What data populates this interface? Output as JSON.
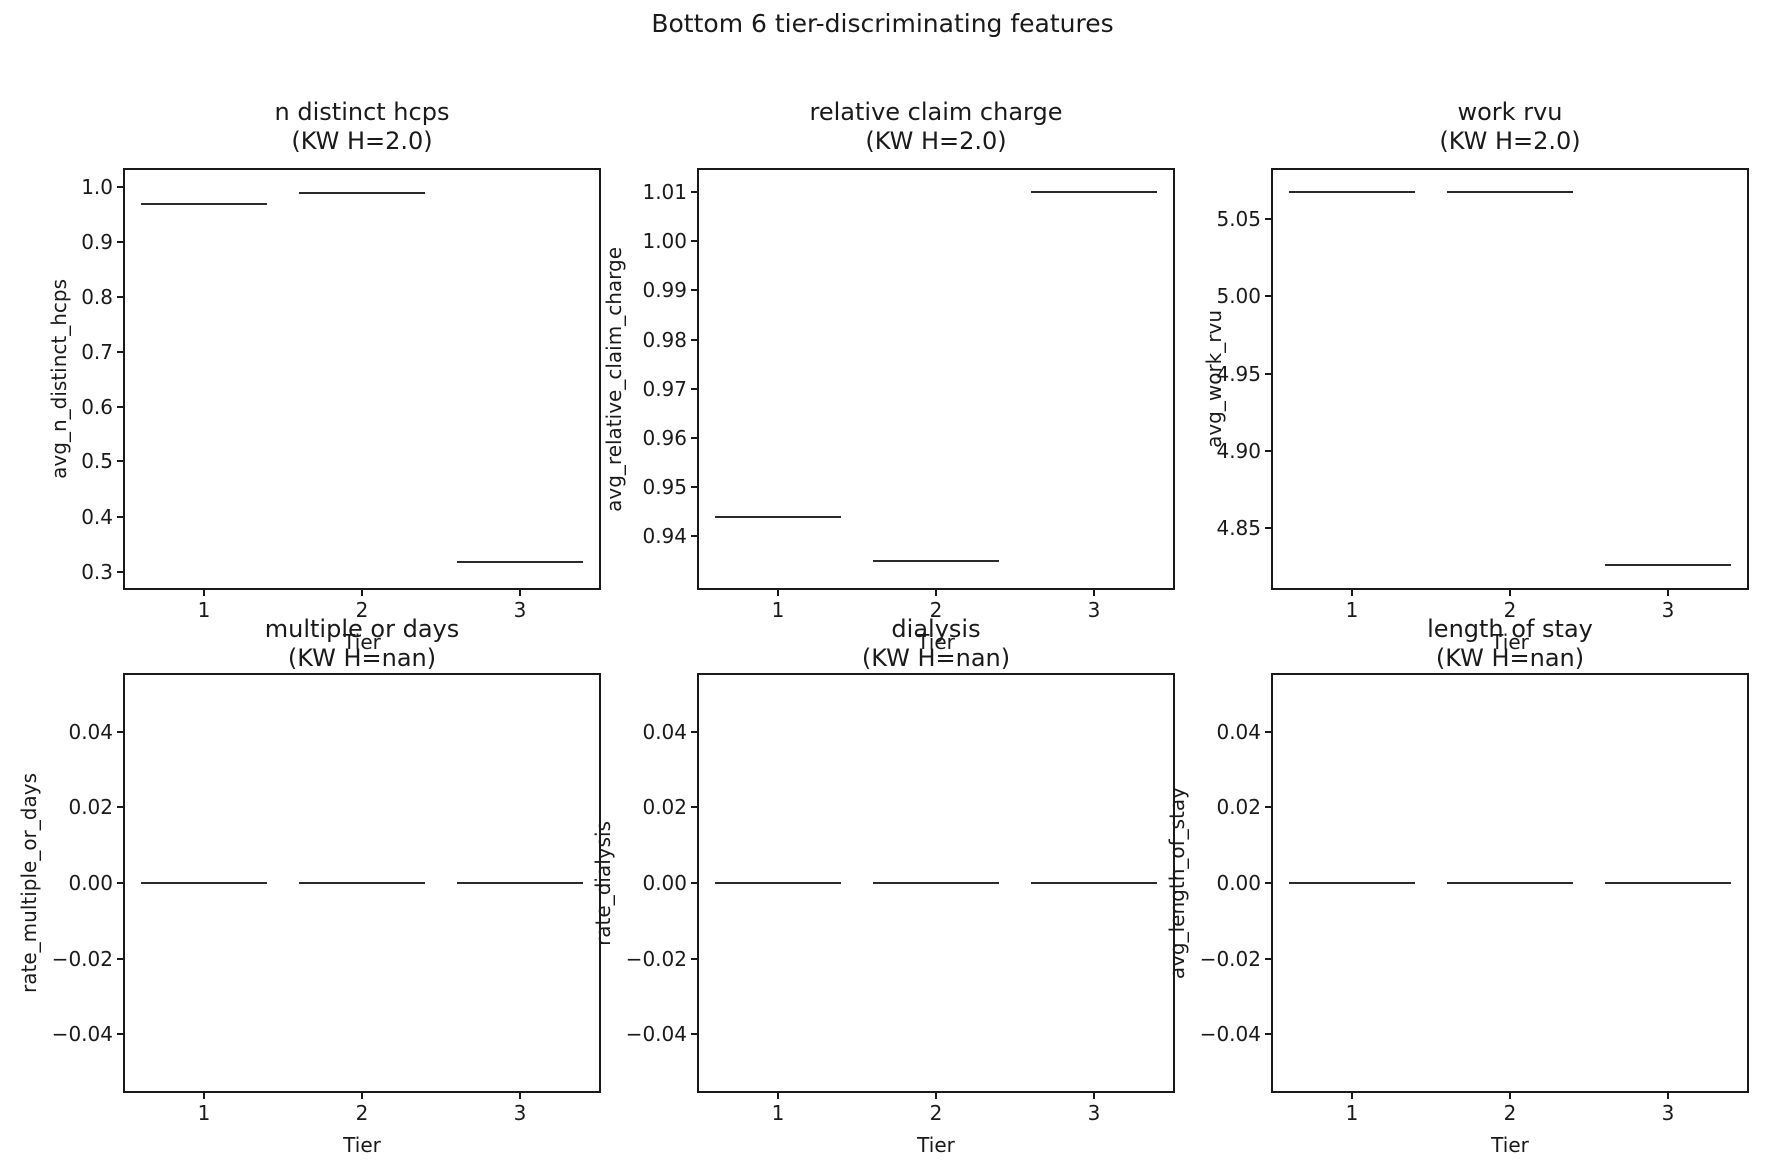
{
  "figure": {
    "suptitle": "Bottom 6 tier-discriminating features"
  },
  "chart_data": [
    {
      "type": "boxplot",
      "title": "n distinct hcps",
      "subtitle": "(KW H=2.0)",
      "kw_h": "2.0",
      "xlabel": "Tier",
      "ylabel": "avg_n_distinct_hcps",
      "categories": [
        "1",
        "2",
        "3"
      ],
      "x": [
        1,
        2,
        3
      ],
      "values": [
        0.968,
        0.988,
        0.318
      ],
      "xlim": [
        0.5,
        3.5
      ],
      "ylim": [
        0.27,
        1.03
      ],
      "box_width": 0.8,
      "yticks": [
        {
          "label": "1.0",
          "value": 1.0
        },
        {
          "label": "0.9",
          "value": 0.9
        },
        {
          "label": "0.8",
          "value": 0.8
        },
        {
          "label": "0.7",
          "value": 0.7
        },
        {
          "label": "0.6",
          "value": 0.6
        },
        {
          "label": "0.5",
          "value": 0.5
        },
        {
          "label": "0.4",
          "value": 0.4
        },
        {
          "label": "0.3",
          "value": 0.3
        }
      ]
    },
    {
      "type": "boxplot",
      "title": "relative claim charge",
      "subtitle": "(KW H=2.0)",
      "kw_h": "2.0",
      "xlabel": "Tier",
      "ylabel": "avg_relative_claim_charge",
      "categories": [
        "1",
        "2",
        "3"
      ],
      "x": [
        1,
        2,
        3
      ],
      "values": [
        0.944,
        0.935,
        1.01
      ],
      "xlim": [
        0.5,
        3.5
      ],
      "ylim": [
        0.9295,
        1.0145
      ],
      "box_width": 0.8,
      "yticks": [
        {
          "label": "1.01",
          "value": 1.01
        },
        {
          "label": "1.00",
          "value": 1.0
        },
        {
          "label": "0.99",
          "value": 0.99
        },
        {
          "label": "0.98",
          "value": 0.98
        },
        {
          "label": "0.97",
          "value": 0.97
        },
        {
          "label": "0.96",
          "value": 0.96
        },
        {
          "label": "0.95",
          "value": 0.95
        },
        {
          "label": "0.94",
          "value": 0.94
        }
      ]
    },
    {
      "type": "boxplot",
      "title": "work rvu",
      "subtitle": "(KW H=2.0)",
      "kw_h": "2.0",
      "xlabel": "Tier",
      "ylabel": "avg_work_rvu",
      "categories": [
        "1",
        "2",
        "3"
      ],
      "x": [
        1,
        2,
        3
      ],
      "values": [
        5.068,
        5.068,
        4.826
      ],
      "xlim": [
        0.5,
        3.5
      ],
      "ylim": [
        4.811,
        5.082
      ],
      "box_width": 0.8,
      "yticks": [
        {
          "label": "5.05",
          "value": 5.05
        },
        {
          "label": "5.00",
          "value": 5.0
        },
        {
          "label": "4.95",
          "value": 4.95
        },
        {
          "label": "4.90",
          "value": 4.9
        },
        {
          "label": "4.85",
          "value": 4.85
        }
      ]
    },
    {
      "type": "boxplot",
      "title": "multiple or days",
      "subtitle": "(KW H=nan)",
      "kw_h": "nan",
      "xlabel": "Tier",
      "ylabel": "rate_multiple_or_days",
      "categories": [
        "1",
        "2",
        "3"
      ],
      "x": [
        1,
        2,
        3
      ],
      "values": [
        0.0,
        0.0,
        0.0
      ],
      "xlim": [
        0.5,
        3.5
      ],
      "ylim": [
        -0.055,
        0.055
      ],
      "box_width": 0.8,
      "yticks": [
        {
          "label": "0.04",
          "value": 0.04
        },
        {
          "label": "0.02",
          "value": 0.02
        },
        {
          "label": "0.00",
          "value": 0.0
        },
        {
          "label": "−0.02",
          "value": -0.02
        },
        {
          "label": "−0.04",
          "value": -0.04
        }
      ]
    },
    {
      "type": "boxplot",
      "title": "dialysis",
      "subtitle": "(KW H=nan)",
      "kw_h": "nan",
      "xlabel": "Tier",
      "ylabel": "rate_dialysis",
      "categories": [
        "1",
        "2",
        "3"
      ],
      "x": [
        1,
        2,
        3
      ],
      "values": [
        0.0,
        0.0,
        0.0
      ],
      "xlim": [
        0.5,
        3.5
      ],
      "ylim": [
        -0.055,
        0.055
      ],
      "box_width": 0.8,
      "yticks": [
        {
          "label": "0.04",
          "value": 0.04
        },
        {
          "label": "0.02",
          "value": 0.02
        },
        {
          "label": "0.00",
          "value": 0.0
        },
        {
          "label": "−0.02",
          "value": -0.02
        },
        {
          "label": "−0.04",
          "value": -0.04
        }
      ]
    },
    {
      "type": "boxplot",
      "title": "length of stay",
      "subtitle": "(KW H=nan)",
      "kw_h": "nan",
      "xlabel": "Tier",
      "ylabel": "avg_length_of_stay",
      "categories": [
        "1",
        "2",
        "3"
      ],
      "x": [
        1,
        2,
        3
      ],
      "values": [
        0.0,
        0.0,
        0.0
      ],
      "xlim": [
        0.5,
        3.5
      ],
      "ylim": [
        -0.055,
        0.055
      ],
      "box_width": 0.8,
      "yticks": [
        {
          "label": "0.04",
          "value": 0.04
        },
        {
          "label": "0.02",
          "value": 0.02
        },
        {
          "label": "0.00",
          "value": 0.0
        },
        {
          "label": "−0.02",
          "value": -0.02
        },
        {
          "label": "−0.04",
          "value": -0.04
        }
      ]
    }
  ]
}
